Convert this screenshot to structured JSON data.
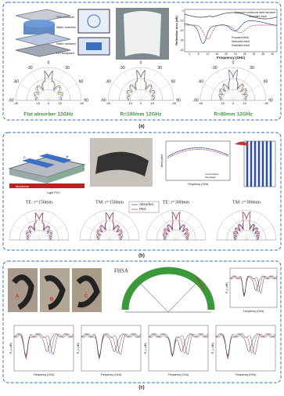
{
  "panel_a": {
    "device_labels": [
      "TPU container",
      "Water channels",
      "Water container",
      "ITO backplane"
    ],
    "chart": {
      "y_label": "Reflection loss (dB)",
      "x_label": "Frequency (GHz)",
      "x_ticks": [
        "4",
        "8",
        "12",
        "16",
        "20",
        "24",
        "28",
        "32",
        "36",
        "40"
      ],
      "y_ticks": [
        "0",
        "-10",
        "-20",
        "-30",
        "-40"
      ],
      "legend": [
        "Sandwich continuous water structure",
        "Simulated result",
        "Proposed MMA",
        "Measured result",
        "Simulated result"
      ]
    },
    "polar_titles": [
      "Flat absorber 12GHz",
      "R=100mm 12GHz",
      "R=80mm 12GHz"
    ],
    "polar_angles": [
      "-30",
      "0",
      "30",
      "-60",
      "60",
      "-90",
      "90"
    ],
    "polar_radii": [
      "-45",
      "-15",
      "0",
      "-15",
      "-45"
    ],
    "caption": "(a)"
  },
  "panel_b": {
    "structure_labels": [
      "Aluminum",
      "Light PVC",
      "D",
      "W"
    ],
    "chart_legend": [
      "Circuit Model",
      "Simulated"
    ],
    "chart_x_label": "Frequency (GHz)",
    "chart_y_label": "Absorption",
    "polar_titles": [
      "TE: r=150mm",
      "TM: r=150mm",
      "TE: r=300mm",
      "TM: r=300mm"
    ],
    "polar_legend": [
      "Absorber",
      "PEC"
    ],
    "caption": "(b)"
  },
  "panel_c": {
    "photo_labels": [
      "A",
      "B",
      "C"
    ],
    "diagram_label": "FHSA",
    "chart_x_label": "Frequency (GHz)",
    "chart_y_label": "R_L (dB)",
    "caption": "(c)"
  }
}
